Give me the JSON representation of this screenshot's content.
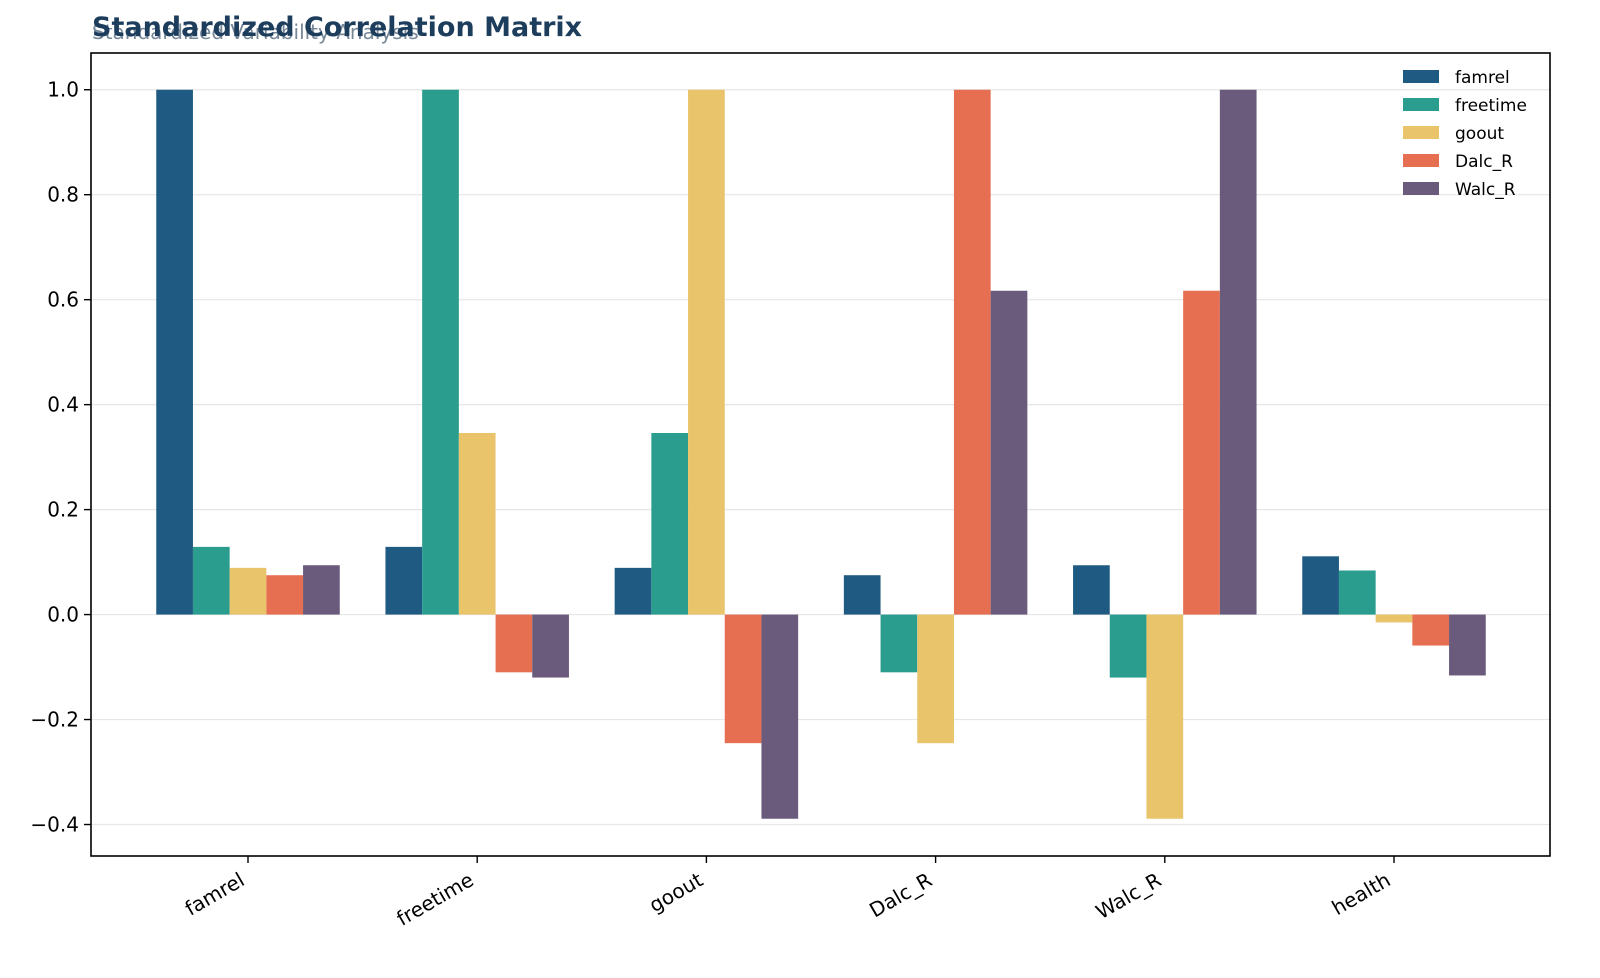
{
  "colors": {
    "famrel": "#1f5a82",
    "freetime": "#2a9d8f",
    "goout": "#e9c46a",
    "Dalc_R": "#e76f51",
    "Walc_R": "#6a5a7b",
    "title": "#1d3d5c",
    "subtitle": "#4a6178",
    "grid": "#e6e6e6",
    "axis": "#000000"
  },
  "chart_data": {
    "type": "bar",
    "title": "Standardized Correlation Matrix",
    "subtitle": "Standardized Variability Analysis",
    "xlabel": "",
    "ylabel": "",
    "categories": [
      "famrel",
      "freetime",
      "goout",
      "Dalc_R",
      "Walc_R",
      "health"
    ],
    "series": [
      {
        "name": "famrel",
        "values": [
          1.0,
          0.129,
          0.089,
          0.075,
          0.094,
          0.111
        ]
      },
      {
        "name": "freetime",
        "values": [
          0.129,
          1.0,
          0.346,
          -0.11,
          -0.12,
          0.084
        ]
      },
      {
        "name": "goout",
        "values": [
          0.089,
          0.346,
          1.0,
          -0.245,
          -0.389,
          -0.015
        ]
      },
      {
        "name": "Dalc_R",
        "values": [
          0.075,
          -0.11,
          -0.245,
          1.0,
          0.617,
          -0.059
        ]
      },
      {
        "name": "Walc_R",
        "values": [
          0.094,
          -0.12,
          -0.389,
          0.617,
          1.0,
          -0.116
        ]
      }
    ],
    "ylim": [
      -0.46,
      1.07
    ],
    "yticks": [
      -0.4,
      -0.2,
      0.0,
      0.2,
      0.4,
      0.6,
      0.8,
      1.0
    ],
    "ytick_labels": [
      "−0.4",
      "−0.2",
      "0.0",
      "0.2",
      "0.4",
      "0.6",
      "0.8",
      "1.0"
    ],
    "grid": true,
    "legend_position": "top-right"
  }
}
